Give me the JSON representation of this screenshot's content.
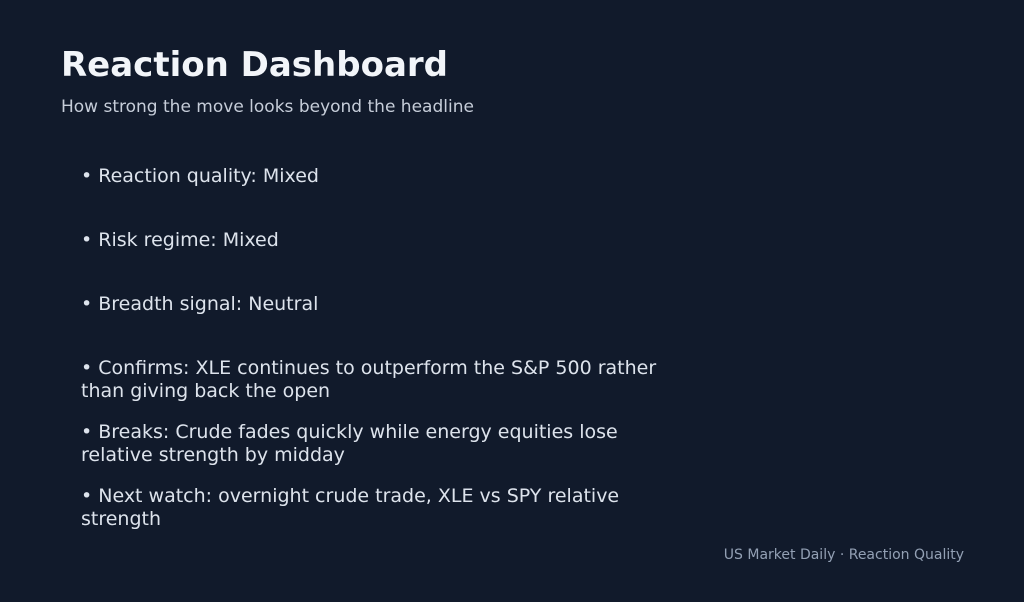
{
  "header": {
    "title": "Reaction Dashboard",
    "subtitle": "How strong the move looks beyond the headline"
  },
  "bullets": [
    "• Reaction quality: Mixed",
    "• Risk regime: Mixed",
    "• Breadth signal: Neutral",
    "• Confirms: XLE continues to outperform the S&P 500 rather\nthan giving back the open",
    "• Breaks: Crude fades quickly while energy equities lose\nrelative strength by midday",
    "• Next watch: overnight crude trade, XLE vs SPY relative\nstrength"
  ],
  "footer": {
    "caption": "US Market Daily · Reaction Quality"
  },
  "colors": {
    "background": "#111a2b",
    "title_text": "#f2f5f9",
    "subtitle_text": "#c6cdd9",
    "bullet_text": "#dde3ec",
    "footer_text": "#93a0b4"
  }
}
